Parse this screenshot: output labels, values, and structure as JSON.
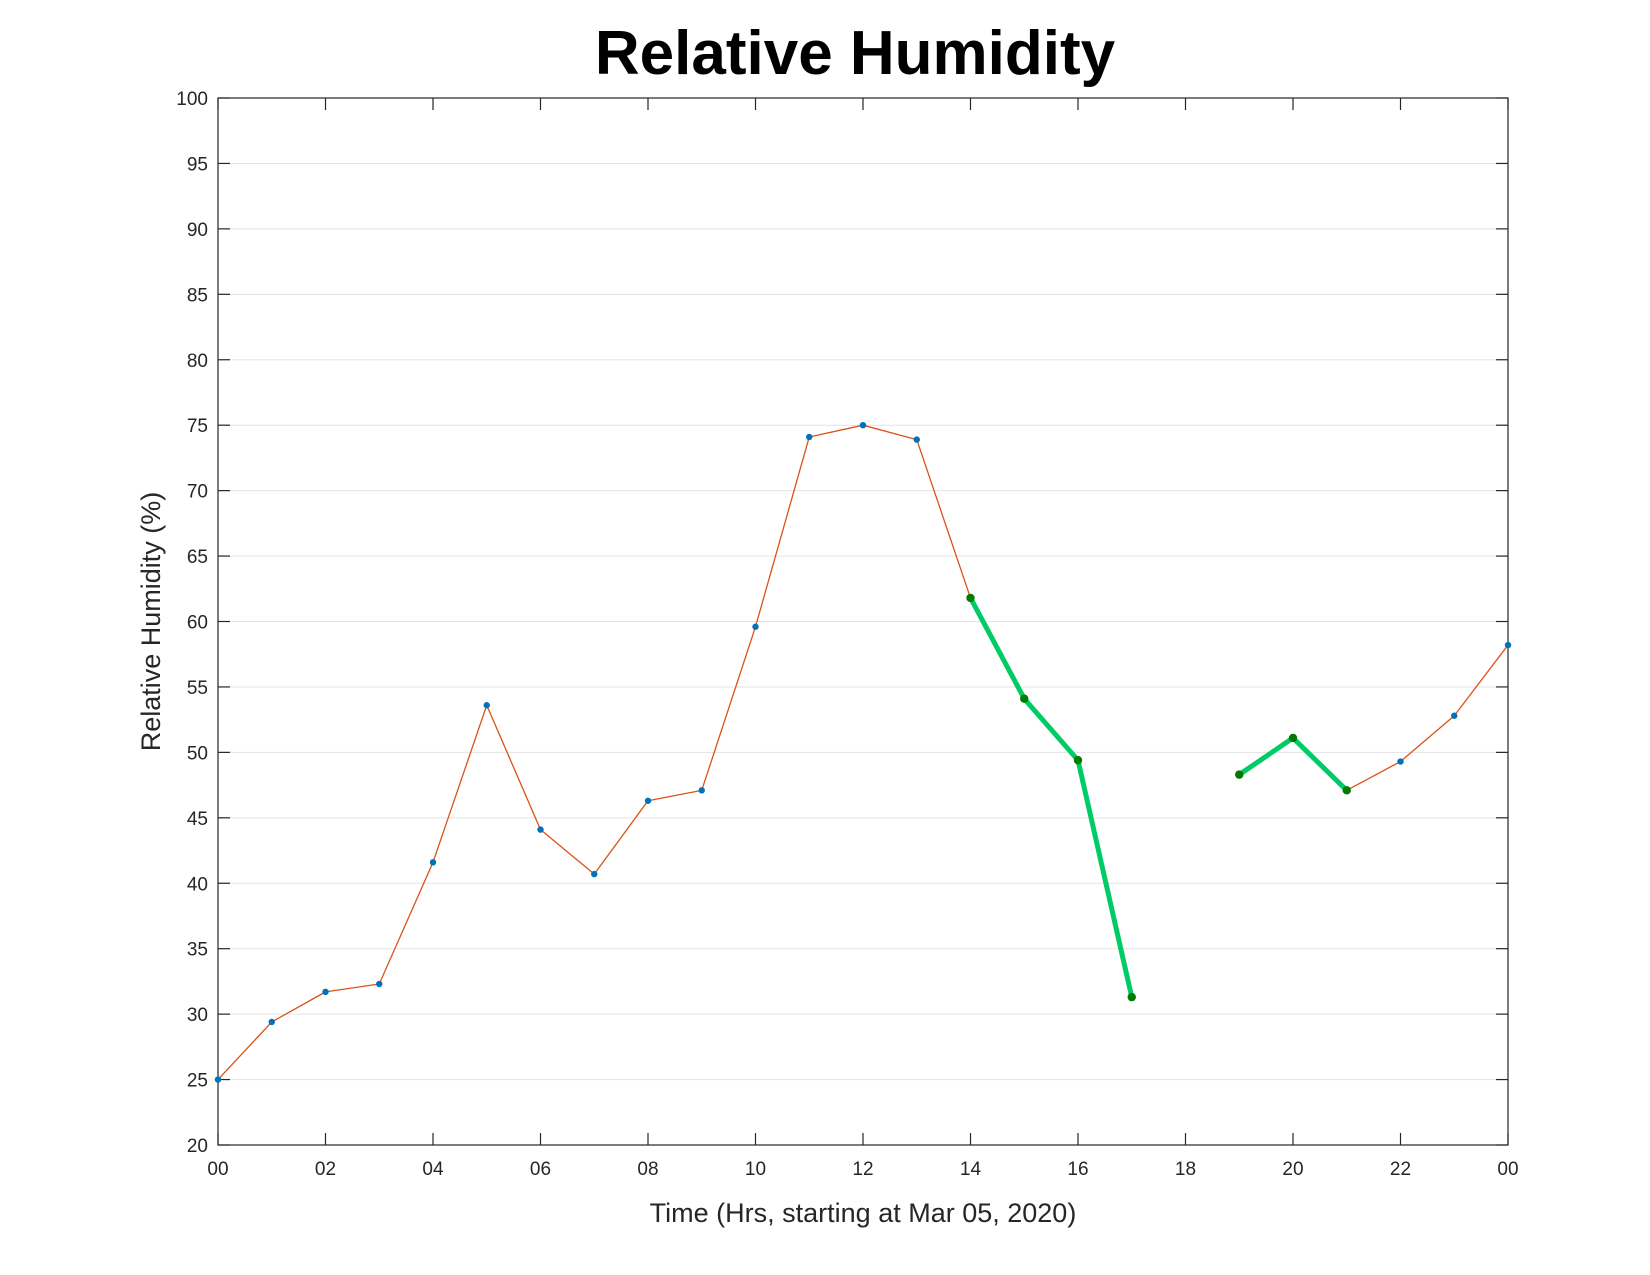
{
  "chart_data": {
    "type": "line",
    "title": "Relative Humidity",
    "xlabel": "Time (Hrs, starting at Mar 05, 2020)",
    "ylabel": "Relative Humidity (%)",
    "x_hours": [
      0,
      1,
      2,
      3,
      4,
      5,
      6,
      7,
      8,
      9,
      10,
      11,
      12,
      13,
      14,
      15,
      16,
      17,
      18,
      19,
      20,
      21,
      22,
      23,
      24
    ],
    "x_tick_hours": [
      0,
      2,
      4,
      6,
      8,
      10,
      12,
      14,
      16,
      18,
      20,
      22,
      24
    ],
    "x_tick_labels": [
      "00",
      "02",
      "04",
      "06",
      "08",
      "10",
      "12",
      "14",
      "16",
      "18",
      "20",
      "22",
      "00"
    ],
    "xlim": [
      0,
      24
    ],
    "ylim": [
      20,
      100
    ],
    "y_ticks": [
      20,
      25,
      30,
      35,
      40,
      45,
      50,
      55,
      60,
      65,
      70,
      75,
      80,
      85,
      90,
      95,
      100
    ],
    "grid": true,
    "series": [
      {
        "values": [
          25.0,
          29.4,
          31.7,
          32.3,
          41.6,
          53.6,
          44.1,
          40.7,
          46.3,
          47.1,
          59.6,
          74.1,
          75.0,
          73.9,
          61.8,
          54.1,
          49.4,
          31.3,
          null,
          48.3,
          51.1,
          47.1,
          49.3,
          52.8,
          58.2
        ],
        "line_color": "#d95319",
        "marker_color": "#0072bd"
      },
      {
        "values": [
          null,
          null,
          null,
          null,
          null,
          null,
          null,
          null,
          null,
          null,
          null,
          null,
          null,
          null,
          61.8,
          54.1,
          49.4,
          31.3,
          null,
          48.3,
          51.1,
          47.1,
          null,
          null,
          null
        ],
        "line_color": "#00cc66",
        "marker_color": "#007a00"
      }
    ]
  }
}
